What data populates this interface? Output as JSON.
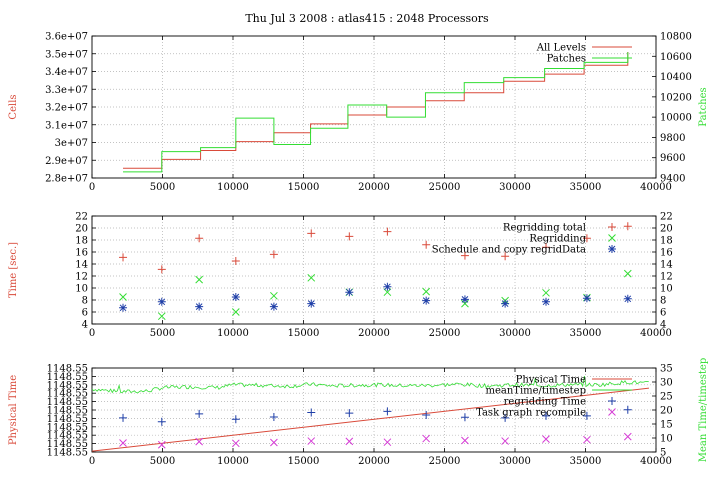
{
  "title": "Thu Jul 3 2008 : atlas415 : 2048 Processors",
  "colors": {
    "red": "#d94a3a",
    "green": "#33dd33",
    "blue": "#1f3fa8",
    "magenta": "#d63cd6",
    "grid": "#b0b0b0"
  },
  "chart_data": [
    {
      "type": "line",
      "title": "Thu Jul 3 2008 : atlas415 : 2048 Processors",
      "xlabel": "",
      "ylabel": "Cells",
      "y2label": "Patches",
      "xlim": [
        0,
        40000
      ],
      "ylim": [
        28000000,
        36000000
      ],
      "y2lim": [
        9400,
        10800
      ],
      "xticks": [
        "0",
        "5000",
        "10000",
        "15000",
        "20000",
        "25000",
        "30000",
        "35000",
        "40000"
      ],
      "yticks": [
        "2.8e+07",
        "2.9e+07",
        "3e+07",
        "3.1e+07",
        "3.2e+07",
        "3.3e+07",
        "3.4e+07",
        "3.5e+07",
        "3.6e+07"
      ],
      "y2ticks": [
        "9400",
        "9600",
        "9800",
        "10000",
        "10200",
        "10400",
        "10600",
        "10800"
      ],
      "grid": true,
      "legend_position": "top-right",
      "series": [
        {
          "name": "All Levels",
          "axis": "y",
          "color": "#d94a3a",
          "style": "step",
          "x": [
            2200,
            4950,
            7700,
            10200,
            12900,
            15500,
            18150,
            20900,
            23650,
            26400,
            29200,
            32100,
            34900
          ],
          "y": [
            28550000,
            29050000,
            29550000,
            30050000,
            30550000,
            31050000,
            31550000,
            32000000,
            32350000,
            32800000,
            33450000,
            33850000,
            34350000
          ],
          "x_end": 38000,
          "y_end": 35100000
        },
        {
          "name": "Patches",
          "axis": "y2",
          "color": "#33dd33",
          "style": "step",
          "x": [
            2200,
            4950,
            7700,
            10200,
            12900,
            15500,
            18150,
            20900,
            23650,
            26400,
            29200,
            32100,
            34900
          ],
          "y": [
            9460,
            9660,
            9700,
            9990,
            9730,
            9890,
            10120,
            10000,
            10240,
            10340,
            10390,
            10480,
            10540
          ],
          "x_end": 38000,
          "y_end": 10640
        }
      ]
    },
    {
      "type": "scatter",
      "xlabel": "",
      "ylabel": "Time [sec.]",
      "xlim": [
        0,
        40000
      ],
      "ylim": [
        4,
        22
      ],
      "xticks": [
        "0",
        "5000",
        "10000",
        "15000",
        "20000",
        "25000",
        "30000",
        "35000",
        "40000"
      ],
      "yticks": [
        "4",
        "6",
        "8",
        "10",
        "12",
        "14",
        "16",
        "18",
        "20",
        "22"
      ],
      "y2ticks": [
        "4",
        "6",
        "8",
        "10",
        "12",
        "14",
        "16",
        "18",
        "20",
        "22"
      ],
      "grid": true,
      "legend_position": "top-right",
      "series": [
        {
          "name": "Regridding total",
          "color": "#d94a3a",
          "marker": "plus",
          "x": [
            2200,
            4950,
            7600,
            10200,
            12900,
            15550,
            18250,
            20950,
            23700,
            26450,
            29300,
            32200,
            35100,
            38000
          ],
          "y": [
            15.1,
            13.1,
            18.3,
            14.5,
            15.6,
            19.1,
            18.6,
            19.4,
            17.2,
            15.4,
            15.3,
            16.8,
            18.3,
            20.3
          ]
        },
        {
          "name": "Regridding",
          "color": "#33dd33",
          "marker": "cross",
          "x": [
            2200,
            4950,
            7600,
            10200,
            12900,
            15550,
            18250,
            20950,
            23700,
            26450,
            29300,
            32200,
            35100,
            38000
          ],
          "y": [
            8.5,
            5.3,
            11.4,
            6.0,
            8.7,
            11.7,
            9.3,
            9.3,
            9.4,
            7.4,
            7.9,
            9.2,
            8.4,
            12.4
          ]
        },
        {
          "name": "Schedule and copy regridData",
          "color": "#1f3fa8",
          "marker": "star",
          "x": [
            2200,
            4950,
            7600,
            10200,
            12900,
            15550,
            18250,
            20950,
            23700,
            26450,
            29300,
            32200,
            35100,
            38000
          ],
          "y": [
            6.7,
            7.7,
            6.9,
            8.5,
            6.9,
            7.4,
            9.3,
            10.2,
            7.9,
            8.1,
            7.4,
            7.7,
            8.3,
            8.2
          ]
        }
      ]
    },
    {
      "type": "line",
      "xlabel": "",
      "ylabel": "Physical Time",
      "y2label": "Mean Time/timestep",
      "xlim": [
        0,
        40000
      ],
      "ylim": [
        0,
        10
      ],
      "y2lim": [
        5,
        35
      ],
      "xticks": [
        "0",
        "5000",
        "10000",
        "15000",
        "20000",
        "25000",
        "30000",
        "35000",
        "40000"
      ],
      "yticks": [
        "1148.55",
        "1148.55",
        "1148.55",
        "1148.55",
        "1148.55",
        "1148.55",
        "1148.55",
        "1148.55",
        "1148.55",
        "1148.55",
        "1148.55"
      ],
      "y2ticks": [
        "5",
        "10",
        "15",
        "20",
        "25",
        "30",
        "35"
      ],
      "grid": true,
      "legend_position": "top-right",
      "series": [
        {
          "name": "Physical Time",
          "axis": "y",
          "color": "#d94a3a",
          "style": "line",
          "x": [
            0,
            39500
          ],
          "y": [
            0.1,
            7.6
          ]
        },
        {
          "name": "meanTime/timestep",
          "axis": "y2",
          "color": "#33dd33",
          "style": "noisy-line",
          "x": [
            0,
            2000,
            4000,
            5000,
            7000,
            9000,
            10000,
            12000,
            14000,
            15500,
            17000,
            19000,
            20500,
            22000,
            24000,
            26000,
            28000,
            30000,
            32000,
            34000,
            36000,
            38000,
            39500
          ],
          "y": [
            27.5,
            26.5,
            26.8,
            28.0,
            28.3,
            28.0,
            29.0,
            28.8,
            28.5,
            29.2,
            28.6,
            28.9,
            29.0,
            28.7,
            28.8,
            29.2,
            28.6,
            29.0,
            28.7,
            29.1,
            29.0,
            30.0,
            29.5
          ]
        },
        {
          "name": "regridding Time",
          "axis": "y2",
          "color": "#1f3fa8",
          "marker": "plus",
          "x": [
            2200,
            4950,
            7600,
            10200,
            12900,
            15550,
            18250,
            20950,
            23700,
            26450,
            29300,
            32200,
            35100,
            38000
          ],
          "y": [
            17.2,
            15.8,
            18.6,
            16.7,
            17.5,
            19.1,
            18.9,
            19.5,
            18.2,
            17.4,
            17.2,
            17.9,
            17.9,
            20.1
          ]
        },
        {
          "name": "Task graph recompile",
          "axis": "y2",
          "color": "#d63cd6",
          "marker": "cross",
          "x": [
            2200,
            4950,
            7600,
            10200,
            12900,
            15550,
            18250,
            20950,
            23700,
            26450,
            29300,
            32200,
            35100,
            38000
          ],
          "y": [
            8.2,
            7.6,
            8.7,
            8.1,
            8.4,
            8.9,
            8.8,
            8.5,
            9.8,
            9.1,
            8.9,
            9.6,
            9.4,
            10.5
          ]
        }
      ]
    }
  ]
}
